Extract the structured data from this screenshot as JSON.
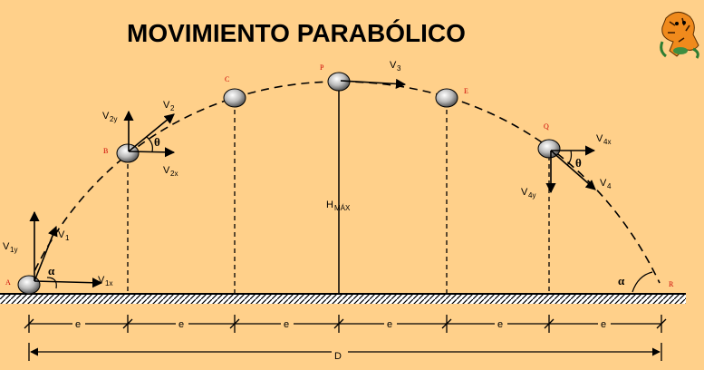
{
  "title": "MOVIMIENTO  PARABÓLICO",
  "points": {
    "A": "A",
    "B": "B",
    "C": "C",
    "P": "P",
    "E": "E",
    "Q": "Q",
    "R": "R"
  },
  "vectors": {
    "v1": "V",
    "v1_sub": "1",
    "v1y": "V",
    "v1y_sub": "1y",
    "v1x": "V",
    "v1x_sub": "1x",
    "v2": "V",
    "v2_sub": "2",
    "v2y": "V",
    "v2y_sub": "2y",
    "v2x": "V",
    "v2x_sub": "2x",
    "v3": "V",
    "v3_sub": "3",
    "v4": "V",
    "v4_sub": "4",
    "v4x": "V",
    "v4x_sub": "4x",
    "v4y": "V",
    "v4y_sub": "4y"
  },
  "angles": {
    "alpha": "α",
    "theta": "θ"
  },
  "height": {
    "label": "H",
    "sub": "MÁX"
  },
  "segments": [
    "e",
    "e",
    "e",
    "e",
    "e",
    "e"
  ],
  "distance": "D",
  "colors": {
    "background": "#FFD08A",
    "ball": "#A8A8A8",
    "points": "#CC0000"
  },
  "icons": {
    "mascot": "tiger-mascot-icon"
  }
}
